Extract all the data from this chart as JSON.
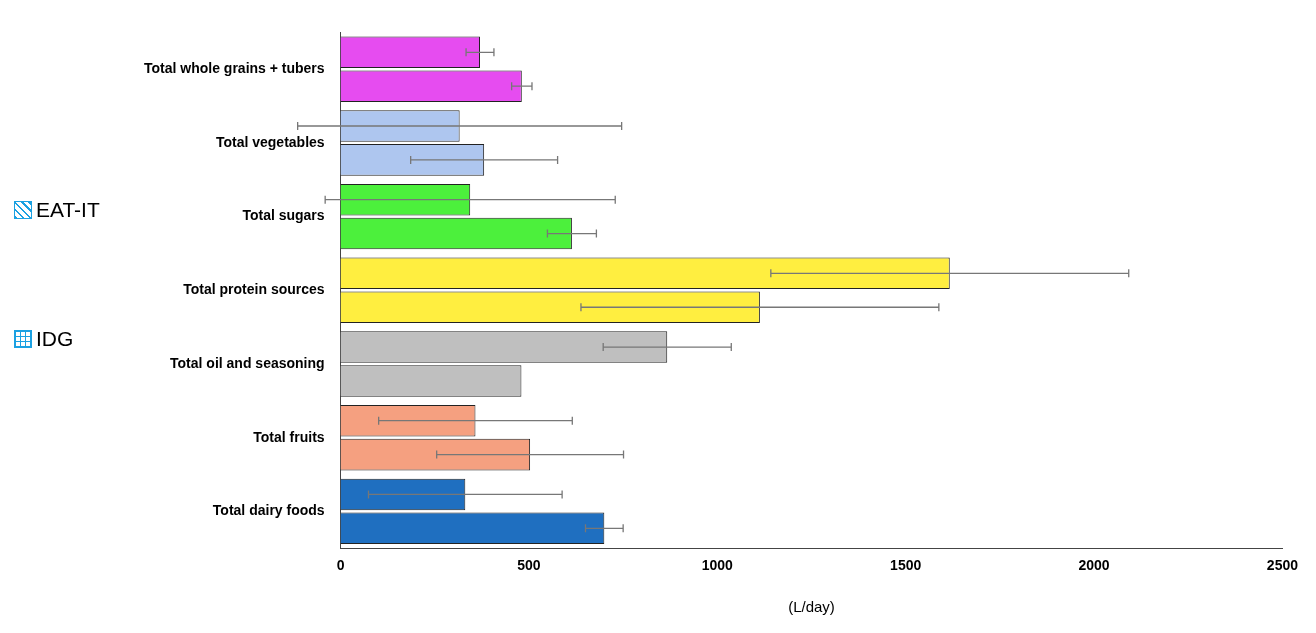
{
  "chart_data": {
    "type": "bar",
    "orientation": "horizontal",
    "xlabel": "(L/day)",
    "categories": [
      "Total whole grains + tubers",
      "Total vegetables",
      "Total sugars",
      "Total protein sources",
      "Total oil and seasoning",
      "Total fruits",
      "Total dairy foods"
    ],
    "xlim": [
      0,
      2500
    ],
    "xticks": [
      0,
      500,
      1000,
      1500,
      2000,
      2500
    ],
    "grid": false,
    "legend": "left",
    "series": [
      {
        "name": "EAT-IT",
        "color": "#1ba1e2",
        "colors": [
          "#e64cf0",
          "#aec6ef",
          "#4cf03c",
          "#ffee40",
          "#bfbfbf",
          "#f5a080",
          "#1f6fc0"
        ],
        "values": [
          370,
          316,
          344,
          1617,
          867,
          358,
          331
        ],
        "errors": [
          37,
          430,
          385,
          475,
          170,
          257,
          257
        ]
      },
      {
        "name": "IDG",
        "color": "#1ba1e2",
        "colors": [
          "#e64cf0",
          "#aec6ef",
          "#4cf03c",
          "#ffee40",
          "#bfbfbf",
          "#f5a080",
          "#1f6fc0"
        ],
        "values": [
          481,
          381,
          614,
          1113,
          480,
          503,
          700
        ],
        "errors": [
          27,
          195,
          65,
          475,
          null,
          248,
          50
        ]
      }
    ]
  }
}
